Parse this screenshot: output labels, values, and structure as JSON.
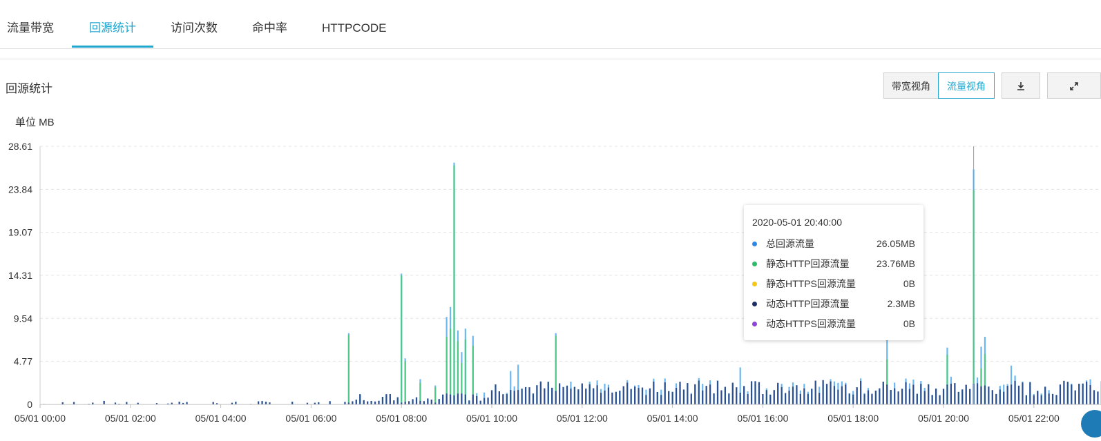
{
  "tabs": [
    {
      "label": "流量带宽",
      "active": false
    },
    {
      "label": "回源统计",
      "active": true
    },
    {
      "label": "访问次数",
      "active": false
    },
    {
      "label": "命中率",
      "active": false
    },
    {
      "label": "HTTPCODE",
      "active": false
    }
  ],
  "section": {
    "title": "回源统计"
  },
  "toolbar": {
    "bandwidth_view": "带宽视角",
    "traffic_view": "流量视角",
    "download_icon": "download-icon",
    "fullscreen_icon": "fullscreen-icon"
  },
  "colors": {
    "accent": "#1da7d1",
    "total": "#6bb8f0",
    "static_http": "#4dc987",
    "static_https": "#f5c518",
    "dynamic_http": "#2c4f8f",
    "dynamic_https": "#9c54d8"
  },
  "chart_data": {
    "type": "bar",
    "unit_label": "单位 MB",
    "ylim": [
      0,
      28.61
    ],
    "yticks": [
      "28.61",
      "23.84",
      "19.07",
      "14.31",
      "9.54",
      "4.77",
      "0"
    ],
    "xlim": [
      "05/01 00:00",
      "05/01 23:55"
    ],
    "xticks": [
      "05/01 00:00",
      "05/01 02:00",
      "05/01 04:00",
      "05/01 06:00",
      "05/01 08:00",
      "05/01 10:00",
      "05/01 12:00",
      "05/01 14:00",
      "05/01 16:00",
      "05/01 18:00",
      "05/01 20:00",
      "05/01 22:00"
    ],
    "grid": true,
    "series": [
      {
        "name": "总回源流量",
        "color": "#6bb8f0"
      },
      {
        "name": "静态HTTP回源流量",
        "color": "#4dc987"
      },
      {
        "name": "静态HTTPS回源流量",
        "color": "#f5c518"
      },
      {
        "name": "动态HTTP回源流量",
        "color": "#2c4f8f"
      },
      {
        "name": "动态HTTPS回源流量",
        "color": "#9c54d8"
      }
    ],
    "points": [
      {
        "time": "05/01 01:40",
        "total": 0.2,
        "static_http": 0,
        "dynamic_http": 0.2
      },
      {
        "time": "05/01 03:05",
        "total": 0.3,
        "static_http": 0,
        "dynamic_http": 0.3
      },
      {
        "time": "05/01 04:20",
        "total": 0.3,
        "static_http": 0,
        "dynamic_http": 0.3
      },
      {
        "time": "05/01 06:50",
        "total": 7.9,
        "static_http": 7.7,
        "dynamic_http": 0.2
      },
      {
        "time": "05/01 07:30",
        "total": 0.4,
        "static_http": 0,
        "dynamic_http": 0.4
      },
      {
        "time": "05/01 08:00",
        "total": 14.5,
        "static_http": 14.3,
        "dynamic_http": 0.2
      },
      {
        "time": "05/01 08:05",
        "total": 5.1,
        "static_http": 4.8,
        "dynamic_http": 0.3
      },
      {
        "time": "05/01 08:25",
        "total": 2.8,
        "static_http": 2.4,
        "dynamic_http": 0.4
      },
      {
        "time": "05/01 08:45",
        "total": 2.1,
        "static_http": 1.9,
        "dynamic_http": 0.2
      },
      {
        "time": "05/01 09:00",
        "total": 9.7,
        "static_http": 7.5,
        "dynamic_http": 1.2
      },
      {
        "time": "05/01 09:05",
        "total": 10.8,
        "static_http": 8.4,
        "dynamic_http": 1.1
      },
      {
        "time": "05/01 09:10",
        "total": 26.8,
        "static_http": 26.5,
        "dynamic_http": 1.0
      },
      {
        "time": "05/01 09:15",
        "total": 8.2,
        "static_http": 7.0,
        "dynamic_http": 1.2
      },
      {
        "time": "05/01 09:20",
        "total": 5.8,
        "static_http": 4.6,
        "dynamic_http": 1.2
      },
      {
        "time": "05/01 09:25",
        "total": 8.4,
        "static_http": 7.2,
        "dynamic_http": 1.1
      },
      {
        "time": "05/01 09:35",
        "total": 7.6,
        "static_http": 6.5,
        "dynamic_http": 1.1
      },
      {
        "time": "05/01 10:25",
        "total": 3.7,
        "static_http": 1.2,
        "dynamic_http": 1.6
      },
      {
        "time": "05/01 10:35",
        "total": 4.4,
        "static_http": 1.0,
        "dynamic_http": 1.6
      },
      {
        "time": "05/01 11:25",
        "total": 7.9,
        "static_http": 7.6,
        "dynamic_http": 1.5
      },
      {
        "time": "05/01 15:30",
        "total": 4.1,
        "static_http": 0.6,
        "dynamic_http": 1.3
      },
      {
        "time": "05/01 18:45",
        "total": 8.2,
        "static_http": 5.0,
        "dynamic_http": 2.2
      },
      {
        "time": "05/01 20:05",
        "total": 6.3,
        "static_http": 5.5,
        "dynamic_http": 2.2
      },
      {
        "time": "05/01 20:40",
        "total": 26.05,
        "static_http": 23.76,
        "static_https": 0,
        "dynamic_http": 2.3,
        "dynamic_https": 0
      },
      {
        "time": "05/01 20:50",
        "total": 6.4,
        "static_http": 4.0,
        "dynamic_http": 2.0
      },
      {
        "time": "05/01 20:55",
        "total": 7.5,
        "static_http": 5.6,
        "dynamic_http": 2.1
      },
      {
        "time": "05/01 21:30",
        "total": 4.3,
        "static_http": 0.5,
        "dynamic_http": 2.2
      },
      {
        "time": "05/01 23:45",
        "total": 4.2,
        "static_http": 0.5,
        "dynamic_http": 2.2
      }
    ],
    "baseline_dynamic_http": {
      "00:00-06:55": "approximately 0.0–0.5",
      "07:00-09:55": "approximately 0.3–1.3",
      "10:00-23:55": "approximately 1.0–2.7"
    },
    "hover_time": "05/01 20:40"
  },
  "tooltip": {
    "time": "2020-05-01 20:40:00",
    "rows": [
      {
        "name": "总回源流量",
        "value": "26.05MB",
        "color": "#2f88e8"
      },
      {
        "name": "静态HTTP回源流量",
        "value": "23.76MB",
        "color": "#2dbb6a"
      },
      {
        "name": "静态HTTPS回源流量",
        "value": "0B",
        "color": "#f5c518"
      },
      {
        "name": "动态HTTP回源流量",
        "value": "2.3MB",
        "color": "#1d2f66"
      },
      {
        "name": "动态HTTPS回源流量",
        "value": "0B",
        "color": "#8e44d6"
      }
    ]
  }
}
